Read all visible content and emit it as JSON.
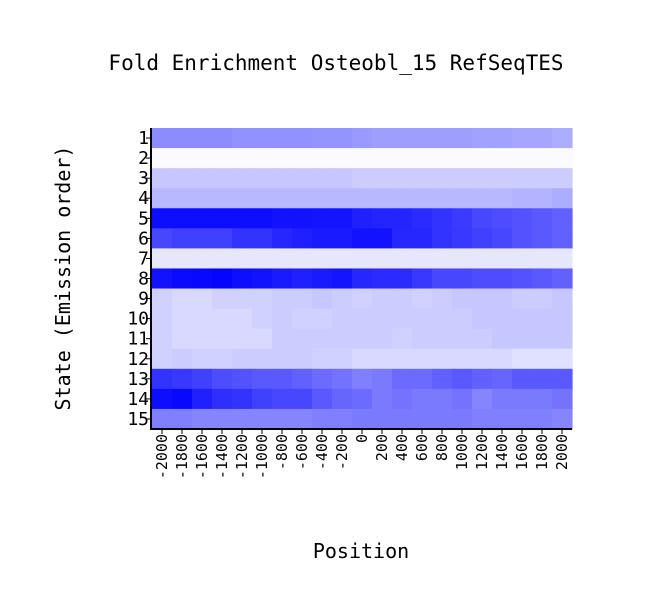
{
  "chart_data": {
    "type": "heatmap",
    "title": "Fold Enrichment Osteobl_15 RefSeqTES",
    "xlabel": "Position",
    "ylabel": "State (Emission order)",
    "rows": [
      "1",
      "2",
      "3",
      "4",
      "5",
      "6",
      "7",
      "8",
      "9",
      "10",
      "11",
      "12",
      "13",
      "14",
      "15"
    ],
    "columns": [
      "-2000",
      "-1800",
      "-1600",
      "-1400",
      "-1200",
      "-1000",
      "-800",
      "-600",
      "-400",
      "-200",
      "0",
      "200",
      "400",
      "600",
      "800",
      "1000",
      "1200",
      "1400",
      "1600",
      "1800",
      "2000"
    ],
    "color_low": "#ffffff",
    "color_high": "#0000ff",
    "values": [
      [
        0.45,
        0.45,
        0.45,
        0.45,
        0.43,
        0.43,
        0.43,
        0.43,
        0.42,
        0.42,
        0.4,
        0.38,
        0.38,
        0.38,
        0.38,
        0.38,
        0.37,
        0.37,
        0.35,
        0.35,
        0.32
      ],
      [
        0.02,
        0.02,
        0.02,
        0.02,
        0.02,
        0.02,
        0.02,
        0.02,
        0.02,
        0.02,
        0.02,
        0.02,
        0.02,
        0.02,
        0.02,
        0.02,
        0.02,
        0.02,
        0.02,
        0.02,
        0.02
      ],
      [
        0.22,
        0.22,
        0.22,
        0.22,
        0.22,
        0.22,
        0.22,
        0.22,
        0.22,
        0.22,
        0.2,
        0.2,
        0.2,
        0.2,
        0.2,
        0.2,
        0.2,
        0.2,
        0.2,
        0.2,
        0.2
      ],
      [
        0.28,
        0.28,
        0.28,
        0.28,
        0.28,
        0.28,
        0.28,
        0.28,
        0.28,
        0.28,
        0.28,
        0.28,
        0.28,
        0.28,
        0.28,
        0.28,
        0.28,
        0.28,
        0.3,
        0.3,
        0.32
      ],
      [
        0.95,
        0.95,
        0.95,
        0.95,
        0.95,
        0.95,
        0.93,
        0.93,
        0.92,
        0.92,
        0.88,
        0.86,
        0.86,
        0.83,
        0.8,
        0.77,
        0.72,
        0.7,
        0.68,
        0.65,
        0.62
      ],
      [
        0.72,
        0.75,
        0.75,
        0.75,
        0.8,
        0.8,
        0.85,
        0.88,
        0.9,
        0.9,
        0.93,
        0.93,
        0.85,
        0.85,
        0.8,
        0.78,
        0.75,
        0.72,
        0.68,
        0.65,
        0.62
      ],
      [
        0.1,
        0.1,
        0.1,
        0.1,
        0.1,
        0.1,
        0.1,
        0.1,
        0.1,
        0.1,
        0.1,
        0.1,
        0.1,
        0.1,
        0.1,
        0.1,
        0.1,
        0.1,
        0.1,
        0.1,
        0.1
      ],
      [
        0.93,
        0.96,
        0.97,
        0.98,
        0.95,
        0.93,
        0.9,
        0.88,
        0.9,
        0.92,
        0.85,
        0.83,
        0.83,
        0.78,
        0.72,
        0.72,
        0.7,
        0.7,
        0.68,
        0.65,
        0.62
      ],
      [
        0.18,
        0.15,
        0.15,
        0.18,
        0.18,
        0.18,
        0.2,
        0.2,
        0.22,
        0.2,
        0.18,
        0.2,
        0.2,
        0.18,
        0.2,
        0.22,
        0.22,
        0.22,
        0.2,
        0.2,
        0.22
      ],
      [
        0.18,
        0.15,
        0.15,
        0.15,
        0.15,
        0.18,
        0.2,
        0.18,
        0.18,
        0.2,
        0.2,
        0.2,
        0.2,
        0.2,
        0.2,
        0.2,
        0.22,
        0.22,
        0.22,
        0.22,
        0.22
      ],
      [
        0.18,
        0.15,
        0.15,
        0.15,
        0.15,
        0.15,
        0.2,
        0.2,
        0.2,
        0.2,
        0.2,
        0.2,
        0.18,
        0.2,
        0.2,
        0.2,
        0.2,
        0.22,
        0.22,
        0.22,
        0.22
      ],
      [
        0.18,
        0.2,
        0.18,
        0.18,
        0.2,
        0.2,
        0.2,
        0.2,
        0.18,
        0.18,
        0.15,
        0.15,
        0.15,
        0.15,
        0.15,
        0.15,
        0.15,
        0.15,
        0.12,
        0.12,
        0.12
      ],
      [
        0.8,
        0.78,
        0.75,
        0.7,
        0.68,
        0.65,
        0.65,
        0.62,
        0.58,
        0.55,
        0.5,
        0.52,
        0.58,
        0.58,
        0.62,
        0.65,
        0.62,
        0.6,
        0.65,
        0.65,
        0.65
      ],
      [
        0.95,
        0.97,
        0.88,
        0.82,
        0.8,
        0.75,
        0.72,
        0.72,
        0.65,
        0.6,
        0.58,
        0.52,
        0.55,
        0.52,
        0.52,
        0.55,
        0.48,
        0.52,
        0.52,
        0.52,
        0.55
      ],
      [
        0.5,
        0.5,
        0.48,
        0.48,
        0.48,
        0.48,
        0.48,
        0.48,
        0.5,
        0.5,
        0.52,
        0.52,
        0.52,
        0.52,
        0.52,
        0.52,
        0.5,
        0.5,
        0.5,
        0.5,
        0.48
      ]
    ]
  }
}
